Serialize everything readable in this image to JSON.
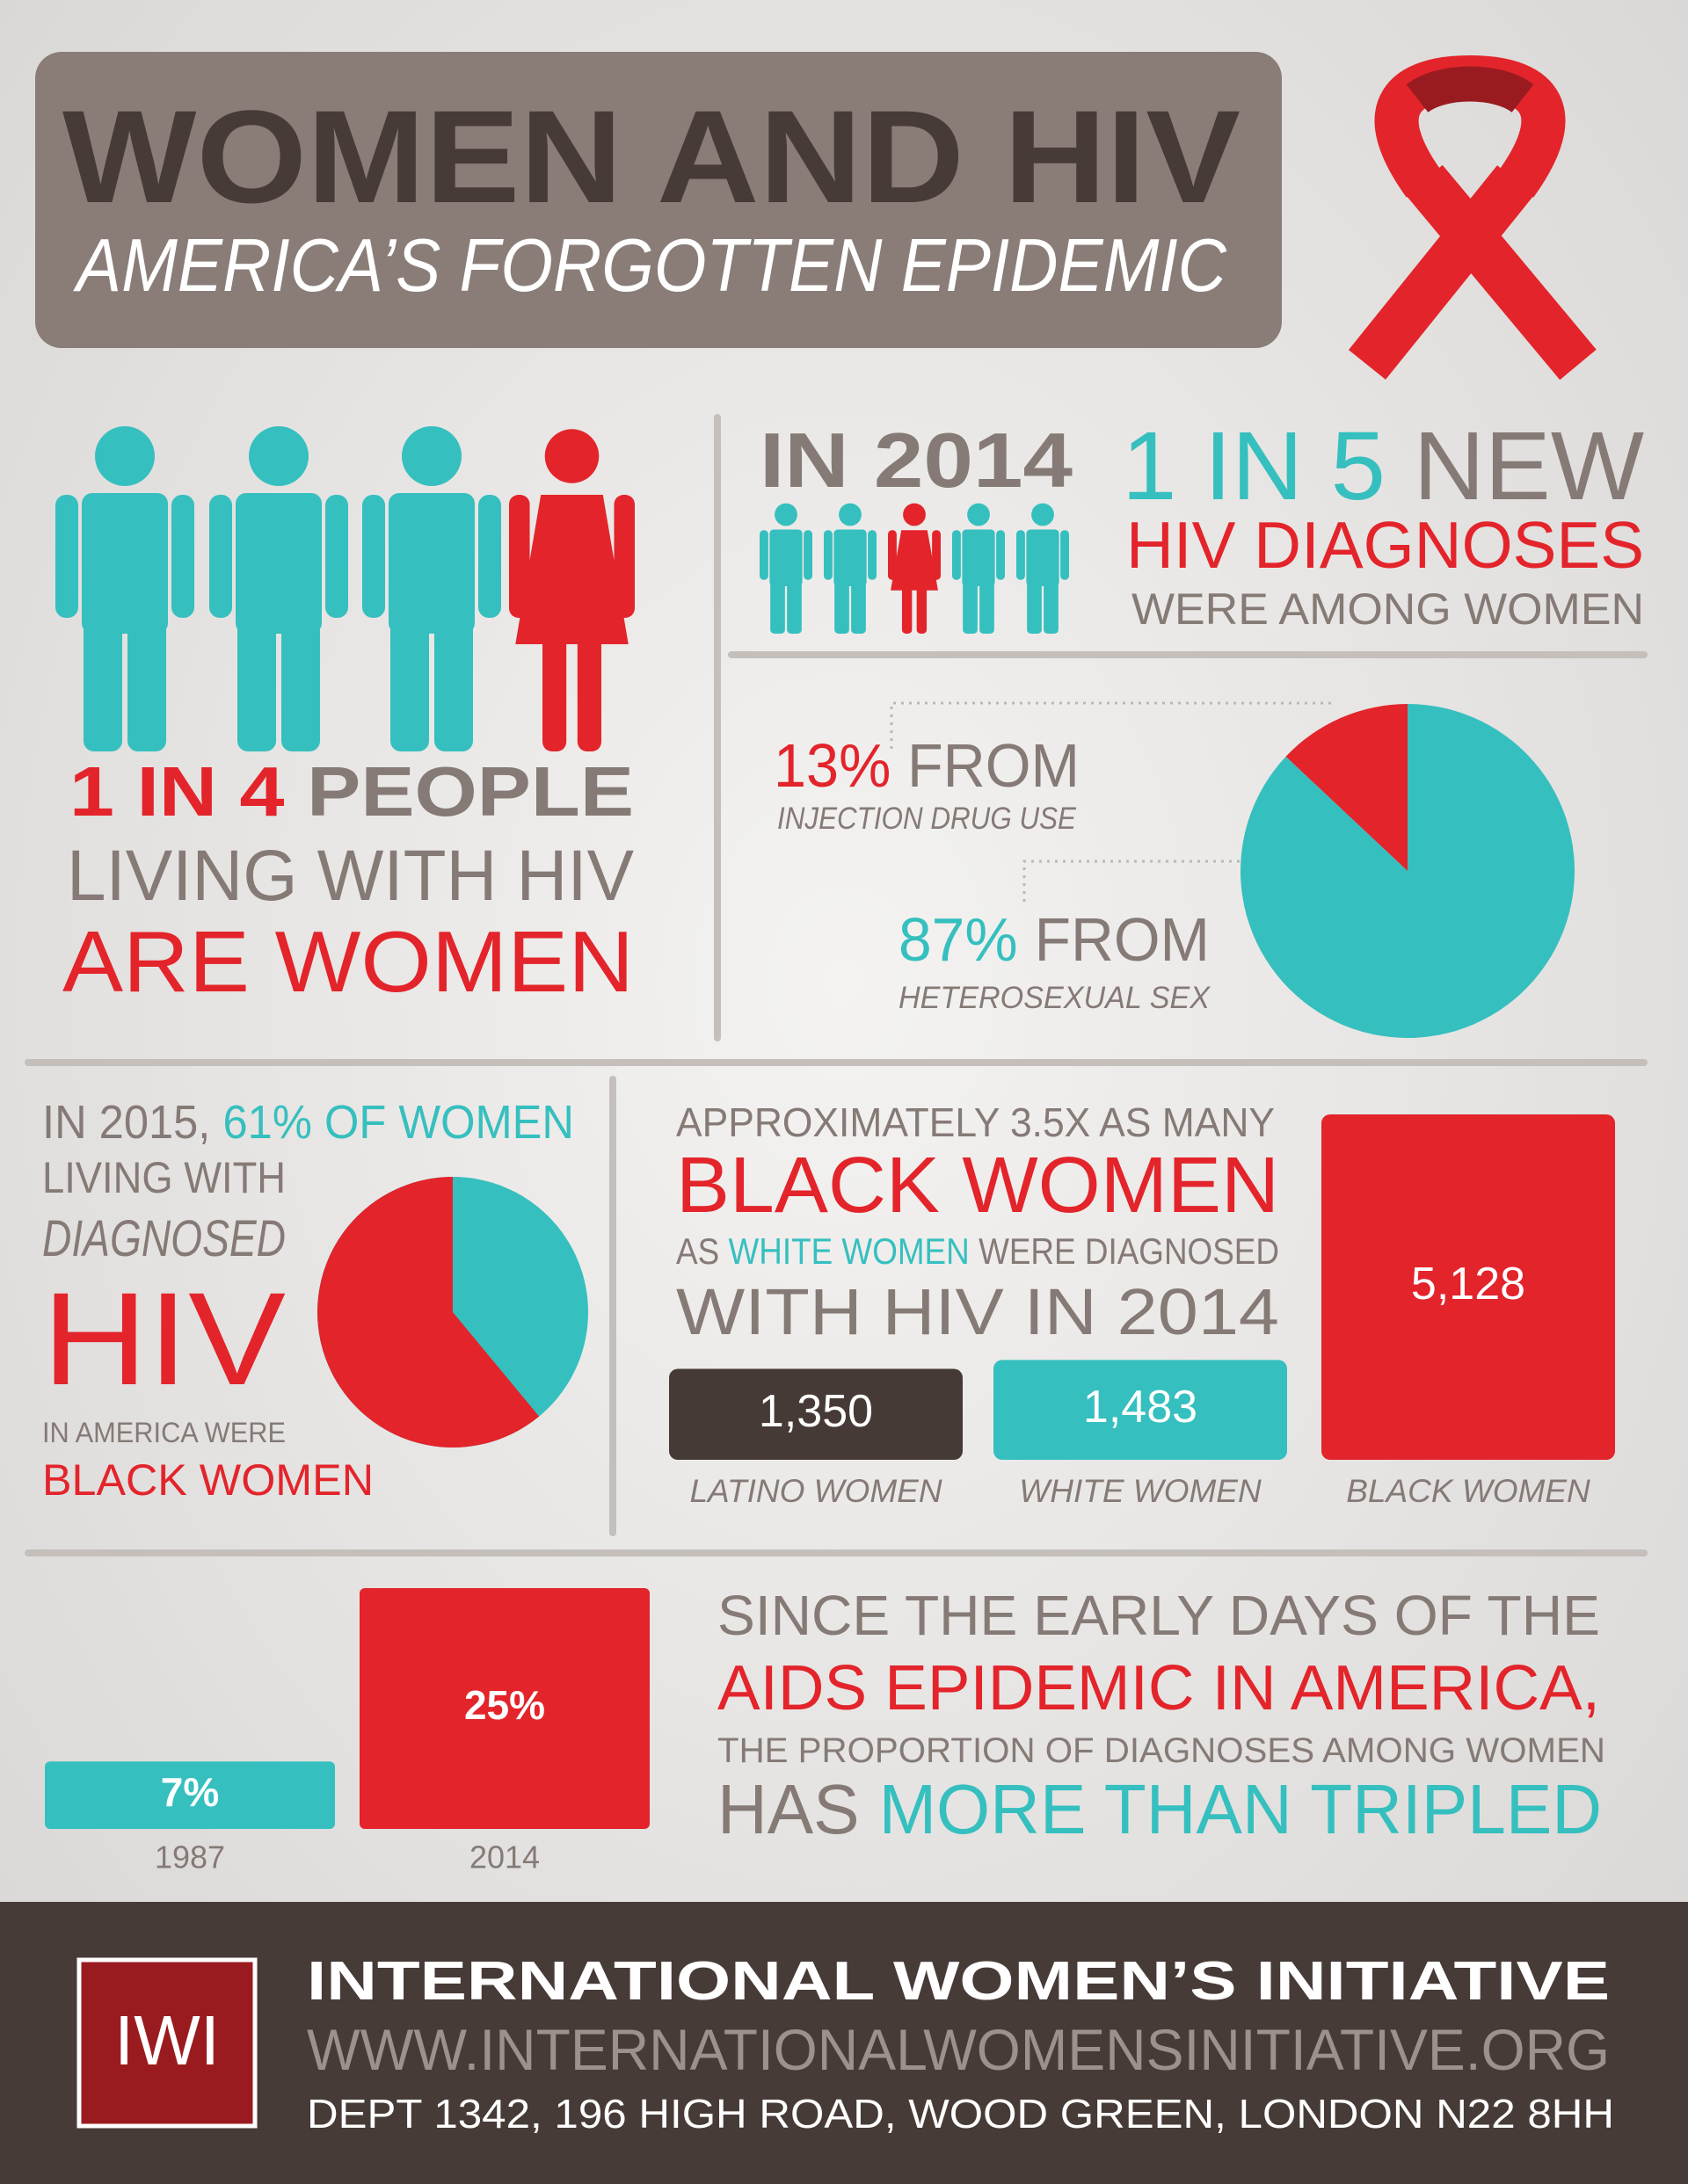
{
  "header": {
    "title": "WOMEN AND HIV",
    "subtitle": "AMERICA’S FORGOTTEN EPIDEMIC"
  },
  "living_with_hiv": {
    "ratio": "1 IN 4",
    "line1": "PEOPLE",
    "line2": "LIVING WITH HIV",
    "line3": "ARE WOMEN"
  },
  "new_diagnoses": {
    "year": "IN 2014",
    "ratio": "1 IN 5",
    "line1": "NEW",
    "line2": "HIV DIAGNOSES",
    "line3": "WERE AMONG WOMEN"
  },
  "sources": [
    {
      "value": 13,
      "label": "13%",
      "text": "FROM",
      "caption": "INJECTION DRUG USE",
      "color": "#e3242b"
    },
    {
      "value": 87,
      "label": "87%",
      "text": "FROM",
      "caption": "HETEROSEXUAL SEX",
      "color": "#36bfbf"
    }
  ],
  "black_women_share": {
    "intro": "IN 2015,",
    "value": 61,
    "label": "61%",
    "line1": "OF WOMEN",
    "line2": "LIVING WITH",
    "line3": "DIAGNOSED",
    "line4": "HIV",
    "line5": "IN AMERICA WERE",
    "line6": "BLACK WOMEN"
  },
  "diagnoses_2014": {
    "line1": "APPROXIMATELY 3.5X AS MANY",
    "line2": "BLACK WOMEN",
    "line3a": "AS",
    "line3b": "WHITE WOMEN",
    "line3c": "WERE DIAGNOSED",
    "line4": "WITH HIV IN 2014",
    "bars": [
      {
        "name": "LATINO WOMEN",
        "value": 1350,
        "label": "1,350",
        "color": "#463a36"
      },
      {
        "name": "WHITE WOMEN",
        "value": 1483,
        "label": "1,483",
        "color": "#36bfbf"
      },
      {
        "name": "BLACK WOMEN",
        "value": 5128,
        "label": "5,128",
        "color": "#e3242b"
      }
    ]
  },
  "trend": {
    "bars": [
      {
        "year": "1987",
        "value": 7,
        "label": "7%",
        "color": "#36bfbf"
      },
      {
        "year": "2014",
        "value": 25,
        "label": "25%",
        "color": "#e3242b"
      }
    ],
    "line1": "SINCE THE EARLY DAYS OF THE",
    "line2": "AIDS EPIDEMIC IN AMERICA,",
    "line3": "THE PROPORTION OF DIAGNOSES AMONG WOMEN",
    "line4a": "HAS",
    "line4b": "MORE THAN TRIPLED"
  },
  "footer": {
    "logo": "IWI",
    "organization": "INTERNATIONAL WOMEN’S INITIATIVE",
    "url": "WWW.INTERNATIONALWOMENSINITIATIVE.ORG",
    "address": "DEPT 1342, 196 HIGH ROAD, WOOD GREEN, LONDON N22 8HH"
  }
}
